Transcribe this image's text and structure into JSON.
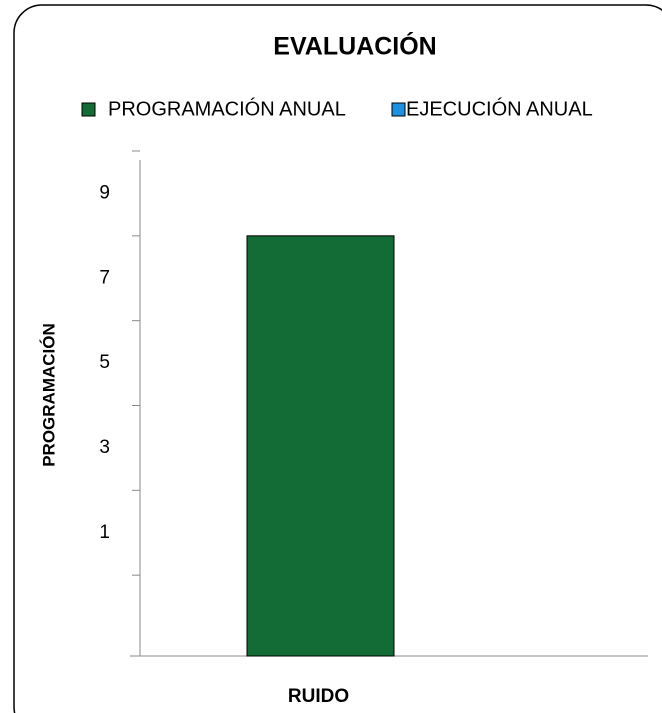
{
  "chart_data": {
    "type": "bar",
    "title": "EVALUACIÓN",
    "y_label": "PROGRAMACIÓN",
    "categories": [
      "RUIDO"
    ],
    "series": [
      {
        "name": "PROGRAMACIÓN ANUAL",
        "color": "#136b35",
        "values": [
          8
        ]
      },
      {
        "name": "EJECUCIÓN ANUAL",
        "color": "#1e90e0",
        "values": [
          null
        ]
      }
    ],
    "ylim": [
      -2,
      10
    ],
    "yticks": [
      1,
      3,
      5,
      7,
      9
    ],
    "ytick_marks": [
      -2,
      0,
      2,
      4,
      6,
      8,
      10
    ],
    "grid": false,
    "legend": "top"
  }
}
